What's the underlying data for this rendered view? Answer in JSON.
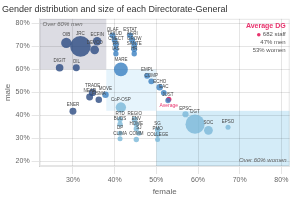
{
  "chart_data": {
    "type": "bubble",
    "title": "Gender distribution and size of each Directorate-General",
    "x_label": "female",
    "y_label": "male",
    "xlim": [
      0.22,
      0.82
    ],
    "ylim": [
      0.18,
      0.82
    ],
    "xticks": [
      {
        "value": 0.3,
        "label": "30%"
      },
      {
        "value": 0.4,
        "label": "40%"
      },
      {
        "value": 0.5,
        "label": "50%"
      },
      {
        "value": 0.6,
        "label": "60%"
      },
      {
        "value": 0.7,
        "label": "70%"
      },
      {
        "value": 0.8,
        "label": "80%"
      }
    ],
    "yticks": [
      {
        "value": 0.2,
        "label": "20%"
      },
      {
        "value": 0.3,
        "label": "30%"
      },
      {
        "value": 0.4,
        "label": "40%"
      },
      {
        "value": 0.5,
        "label": "50%"
      },
      {
        "value": 0.6,
        "label": "60%"
      },
      {
        "value": 0.7,
        "label": "70%"
      },
      {
        "value": 0.8,
        "label": "80%"
      }
    ],
    "grid": true,
    "point_labels": [
      "OIB",
      "JRC",
      "DEVCO",
      "DIGIT",
      "OIL",
      "ECFIN",
      "ENER",
      "TRADE",
      "NEAR",
      "FISMA",
      "OLAF",
      "TAXUD",
      "CNECT",
      "FPI",
      "IAS",
      "ESTAT",
      "AGRI",
      "GROW",
      "SANTE",
      "HR",
      "MARE",
      "MOVE",
      "EMPL",
      "COMP",
      "ECHO",
      "EAC",
      "JUST",
      "CoP-OSP",
      "RTD",
      "REGIO",
      "BUDS",
      "ENV",
      "HOME",
      "SJ",
      "DP",
      "CLIMA",
      "COMM",
      "SG",
      "PMO",
      "COLLEGE",
      "EPSC",
      "DGT",
      "SOC",
      "EPSO"
    ],
    "x": [
      0.284,
      0.318,
      0.352,
      0.268,
      0.308,
      0.358,
      0.3,
      0.347,
      0.34,
      0.362,
      0.395,
      0.4,
      0.403,
      0.403,
      0.403,
      0.437,
      0.442,
      0.447,
      0.447,
      0.447,
      0.415,
      0.378,
      0.478,
      0.488,
      0.508,
      0.518,
      0.528,
      0.415,
      0.413,
      0.448,
      0.413,
      0.452,
      0.452,
      0.458,
      0.413,
      0.413,
      0.452,
      0.503,
      0.503,
      0.503,
      0.57,
      0.593,
      0.625,
      0.672
    ],
    "values": [
      0.715,
      0.7,
      0.685,
      0.607,
      0.607,
      0.722,
      0.418,
      0.5,
      0.48,
      0.468,
      0.748,
      0.728,
      0.708,
      0.688,
      0.668,
      0.748,
      0.728,
      0.708,
      0.688,
      0.668,
      0.6,
      0.49,
      0.572,
      0.548,
      0.522,
      0.498,
      0.465,
      0.435,
      0.382,
      0.382,
      0.362,
      0.362,
      0.342,
      0.322,
      0.322,
      0.298,
      0.295,
      0.338,
      0.318,
      0.295,
      0.405,
      0.362,
      0.335,
      0.348
    ],
    "sizes": [
      55,
      220,
      40,
      30,
      25,
      38,
      25,
      28,
      25,
      22,
      18,
      18,
      18,
      15,
      15,
      18,
      18,
      18,
      18,
      15,
      100,
      22,
      18,
      18,
      22,
      18,
      15,
      55,
      15,
      18,
      15,
      15,
      15,
      13,
      13,
      13,
      15,
      15,
      15,
      13,
      20,
      190,
      40,
      13
    ],
    "colors": [
      "#2c4b82",
      "#2c4b82",
      "#2c4b82",
      "#2c4b82",
      "#2c4b82",
      "#2c4b82",
      "#2c4b82",
      "#2c4b82",
      "#2c4b82",
      "#2c4b82",
      "#3a80c0",
      "#3a80c0",
      "#3a80c0",
      "#3a80c0",
      "#3a80c0",
      "#3a80c0",
      "#3a80c0",
      "#3a80c0",
      "#3a80c0",
      "#3a80c0",
      "#3a80c0",
      "#3a80c0",
      "#3a80c0",
      "#3a80c0",
      "#3a80c0",
      "#3a80c0",
      "#3a80c0",
      "#7ab8d8",
      "#7ab8d8",
      "#7ab8d8",
      "#7ab8d8",
      "#7ab8d8",
      "#7ab8d8",
      "#7ab8d8",
      "#7ab8d8",
      "#7ab8d8",
      "#7ab8d8",
      "#7ab8d8",
      "#7ab8d8",
      "#7ab8d8",
      "#7ab8d8",
      "#7ab8d8",
      "#7ab8d8",
      "#7ab8d8"
    ],
    "average": {
      "x": 0.53,
      "y": 0.47,
      "size": 14,
      "color": "#e8336d",
      "label": "Average",
      "title": "Average DG",
      "body": [
        "682 staff",
        "47% men",
        "53% women"
      ]
    },
    "regions": [
      {
        "x": [
          0.22,
          0.38
        ],
        "y": [
          0.6,
          0.82
        ],
        "color": "#d0d0da",
        "label": "Over 60% men"
      },
      {
        "x": [
          0.5,
          0.82
        ],
        "y": [
          0.18,
          0.42
        ],
        "color": "#c5e5f5",
        "label": "Over 60% women"
      },
      {
        "x": [
          0.38,
          0.5
        ],
        "y": [
          0.42,
          0.6
        ],
        "color": "#ddf0fb"
      }
    ]
  }
}
